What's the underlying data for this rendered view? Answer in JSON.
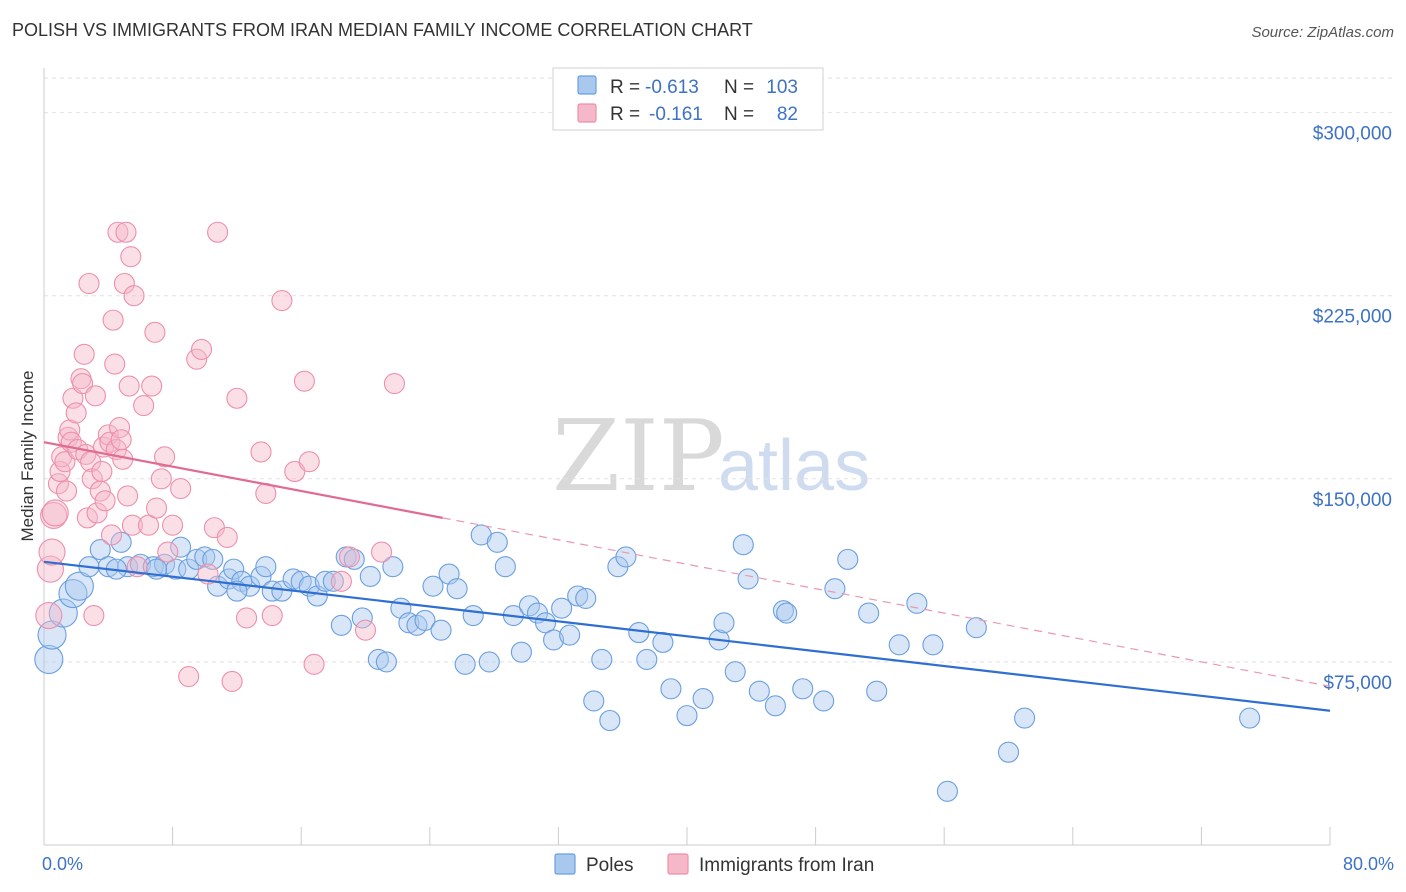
{
  "header": {
    "title": "POLISH VS IMMIGRANTS FROM IRAN MEDIAN FAMILY INCOME CORRELATION CHART",
    "source": "Source: ZipAtlas.com"
  },
  "watermark": {
    "zip": "ZIP",
    "atlas": "atlas"
  },
  "legend": {
    "r_label": "R =",
    "n_label": "N =",
    "entries": [
      {
        "r": "-0.613",
        "n": "103",
        "color": "#a9c8ee"
      },
      {
        "r": "-0.161",
        "n": "82",
        "color": "#f5b8c9"
      }
    ]
  },
  "chart_data": {
    "type": "scatter",
    "title": "POLISH VS IMMIGRANTS FROM IRAN MEDIAN FAMILY INCOME CORRELATION CHART",
    "xlabel": "",
    "ylabel": "Median Family Income",
    "xlim": [
      0,
      80
    ],
    "ylim": [
      0,
      315000
    ],
    "x_tick_labels": [
      "0.0%",
      "80.0%"
    ],
    "y_ticks": [
      75000,
      150000,
      225000,
      300000
    ],
    "y_tick_labels": [
      "$75,000",
      "$150,000",
      "$225,000",
      "$300,000"
    ],
    "grid": true,
    "legend_position": "top-center",
    "series": [
      {
        "name": "Poles",
        "color": "#6a9fe0",
        "fill": "#a9c8ee",
        "trend": {
          "x": [
            0,
            80
          ],
          "y": [
            116000,
            55000
          ],
          "color": "#2f6fd1"
        },
        "points": [
          [
            0.3,
            76000
          ],
          [
            0.5,
            86000
          ],
          [
            1.2,
            95000
          ],
          [
            1.8,
            103000
          ],
          [
            2.2,
            106000
          ],
          [
            2.8,
            114000
          ],
          [
            3.5,
            121000
          ],
          [
            4.0,
            114000
          ],
          [
            4.8,
            124000
          ],
          [
            5.2,
            114000
          ],
          [
            6.0,
            115000
          ],
          [
            6.8,
            114000
          ],
          [
            7.5,
            115000
          ],
          [
            8.2,
            113000
          ],
          [
            8.5,
            122000
          ],
          [
            9.0,
            113000
          ],
          [
            9.5,
            117000
          ],
          [
            10.0,
            118000
          ],
          [
            10.5,
            117000
          ],
          [
            10.8,
            106000
          ],
          [
            11.5,
            109000
          ],
          [
            11.8,
            113000
          ],
          [
            12.3,
            108000
          ],
          [
            12.8,
            106000
          ],
          [
            13.5,
            110000
          ],
          [
            13.8,
            114000
          ],
          [
            14.2,
            104000
          ],
          [
            14.8,
            104000
          ],
          [
            15.5,
            109000
          ],
          [
            16.0,
            108000
          ],
          [
            16.5,
            106000
          ],
          [
            17.0,
            102000
          ],
          [
            17.5,
            108000
          ],
          [
            18.0,
            108000
          ],
          [
            18.5,
            90000
          ],
          [
            18.8,
            118000
          ],
          [
            19.3,
            117000
          ],
          [
            19.8,
            93000
          ],
          [
            20.3,
            110000
          ],
          [
            20.8,
            76000
          ],
          [
            21.3,
            75000
          ],
          [
            21.7,
            114000
          ],
          [
            22.2,
            97000
          ],
          [
            22.7,
            91000
          ],
          [
            23.2,
            90000
          ],
          [
            23.7,
            92000
          ],
          [
            24.2,
            106000
          ],
          [
            24.7,
            88000
          ],
          [
            25.2,
            111000
          ],
          [
            25.7,
            105000
          ],
          [
            26.2,
            74000
          ],
          [
            26.7,
            94000
          ],
          [
            27.2,
            127000
          ],
          [
            27.7,
            75000
          ],
          [
            28.2,
            124000
          ],
          [
            28.7,
            114000
          ],
          [
            29.2,
            94000
          ],
          [
            29.7,
            79000
          ],
          [
            30.2,
            98000
          ],
          [
            30.7,
            95000
          ],
          [
            31.2,
            91000
          ],
          [
            31.7,
            84000
          ],
          [
            32.2,
            97000
          ],
          [
            32.7,
            86000
          ],
          [
            33.2,
            102000
          ],
          [
            33.7,
            101000
          ],
          [
            34.2,
            59000
          ],
          [
            34.7,
            76000
          ],
          [
            35.2,
            51000
          ],
          [
            35.7,
            114000
          ],
          [
            36.2,
            118000
          ],
          [
            37.0,
            87000
          ],
          [
            37.5,
            76000
          ],
          [
            38.5,
            83000
          ],
          [
            39.0,
            64000
          ],
          [
            40.0,
            53000
          ],
          [
            41.0,
            60000
          ],
          [
            42.0,
            84000
          ],
          [
            42.3,
            91000
          ],
          [
            43.0,
            71000
          ],
          [
            43.5,
            123000
          ],
          [
            43.8,
            109000
          ],
          [
            44.5,
            63000
          ],
          [
            45.5,
            57000
          ],
          [
            46.0,
            96000
          ],
          [
            46.2,
            95000
          ],
          [
            47.2,
            64000
          ],
          [
            48.5,
            59000
          ],
          [
            49.2,
            105000
          ],
          [
            50.0,
            117000
          ],
          [
            51.3,
            95000
          ],
          [
            51.8,
            63000
          ],
          [
            53.2,
            82000
          ],
          [
            54.3,
            99000
          ],
          [
            55.3,
            82000
          ],
          [
            56.2,
            22000
          ],
          [
            58.0,
            89000
          ],
          [
            60.0,
            38000
          ],
          [
            61.0,
            52000
          ],
          [
            75.0,
            52000
          ],
          [
            4.5,
            113000
          ],
          [
            7.0,
            113000
          ],
          [
            12.0,
            104000
          ]
        ]
      },
      {
        "name": "Immigrants from Iran",
        "color": "#ee8fab",
        "fill": "#f5b8c9",
        "trend": {
          "x": [
            0,
            24.8
          ],
          "y": [
            165000,
            134000
          ],
          "color": "#e06b93"
        },
        "trend_dashed": {
          "x": [
            24.8,
            80
          ],
          "y": [
            134000,
            65000
          ],
          "color": "#e898b2"
        },
        "points": [
          [
            0.3,
            94000
          ],
          [
            0.4,
            113000
          ],
          [
            0.5,
            120000
          ],
          [
            0.6,
            135000
          ],
          [
            0.7,
            136000
          ],
          [
            0.9,
            148000
          ],
          [
            1.0,
            153000
          ],
          [
            1.1,
            159000
          ],
          [
            1.3,
            157000
          ],
          [
            1.4,
            145000
          ],
          [
            1.5,
            167000
          ],
          [
            1.6,
            170000
          ],
          [
            1.7,
            165000
          ],
          [
            1.8,
            183000
          ],
          [
            2.0,
            177000
          ],
          [
            2.1,
            162000
          ],
          [
            2.3,
            191000
          ],
          [
            2.4,
            189000
          ],
          [
            2.5,
            201000
          ],
          [
            2.6,
            160000
          ],
          [
            2.7,
            134000
          ],
          [
            2.8,
            230000
          ],
          [
            2.9,
            157000
          ],
          [
            3.0,
            150000
          ],
          [
            3.1,
            94000
          ],
          [
            3.2,
            184000
          ],
          [
            3.3,
            136000
          ],
          [
            3.5,
            145000
          ],
          [
            3.6,
            153000
          ],
          [
            3.7,
            163000
          ],
          [
            3.8,
            141000
          ],
          [
            4.0,
            168000
          ],
          [
            4.1,
            165000
          ],
          [
            4.2,
            127000
          ],
          [
            4.3,
            215000
          ],
          [
            4.4,
            197000
          ],
          [
            4.5,
            162000
          ],
          [
            4.6,
            251000
          ],
          [
            4.7,
            171000
          ],
          [
            4.8,
            166000
          ],
          [
            4.9,
            158000
          ],
          [
            5.0,
            230000
          ],
          [
            5.1,
            251000
          ],
          [
            5.2,
            143000
          ],
          [
            5.3,
            188000
          ],
          [
            5.4,
            241000
          ],
          [
            5.5,
            131000
          ],
          [
            5.6,
            225000
          ],
          [
            5.8,
            114000
          ],
          [
            6.2,
            180000
          ],
          [
            6.5,
            131000
          ],
          [
            6.7,
            188000
          ],
          [
            6.9,
            210000
          ],
          [
            7.0,
            138000
          ],
          [
            7.3,
            150000
          ],
          [
            7.5,
            159000
          ],
          [
            7.7,
            120000
          ],
          [
            8.0,
            131000
          ],
          [
            8.5,
            146000
          ],
          [
            9.0,
            69000
          ],
          [
            9.5,
            199000
          ],
          [
            9.8,
            203000
          ],
          [
            10.2,
            111000
          ],
          [
            10.6,
            130000
          ],
          [
            10.8,
            251000
          ],
          [
            11.4,
            126000
          ],
          [
            11.7,
            67000
          ],
          [
            12.0,
            183000
          ],
          [
            12.6,
            93000
          ],
          [
            13.5,
            161000
          ],
          [
            13.8,
            144000
          ],
          [
            14.2,
            94000
          ],
          [
            14.8,
            223000
          ],
          [
            15.6,
            153000
          ],
          [
            16.2,
            190000
          ],
          [
            16.5,
            157000
          ],
          [
            16.8,
            74000
          ],
          [
            18.5,
            108000
          ],
          [
            19.0,
            118000
          ],
          [
            20.0,
            88000
          ],
          [
            21.0,
            120000
          ],
          [
            21.8,
            189000
          ]
        ]
      }
    ]
  },
  "bottom_legend": {
    "items": [
      {
        "label": "Poles"
      },
      {
        "label": "Immigrants from Iran"
      }
    ]
  }
}
